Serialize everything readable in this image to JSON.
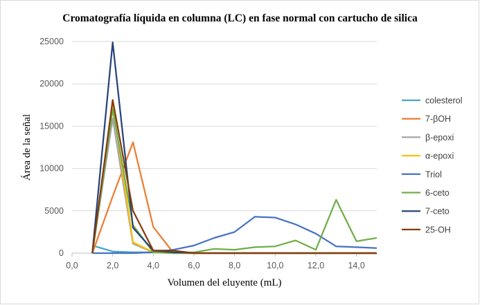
{
  "chart_data": {
    "type": "line",
    "title": "Cromatografía líquida en columna (LC) en fase normal con cartucho de silica",
    "xlabel": "Volumen del eluyente (mL)",
    "ylabel": "Área de la señal",
    "xlim": [
      0,
      15
    ],
    "ylim": [
      0,
      25000
    ],
    "x_ticks": [
      "0,0",
      "2,0",
      "4,0",
      "6,0",
      "8,0",
      "10,0",
      "12,0",
      "14,0"
    ],
    "y_ticks": [
      "0",
      "5000",
      "10000",
      "15000",
      "20000",
      "25000"
    ],
    "grid": "horizontal",
    "legend_position": "right",
    "x": [
      1,
      2,
      3,
      4,
      5,
      6,
      7,
      8,
      9,
      10,
      11,
      12,
      13,
      14,
      15
    ],
    "series": [
      {
        "name": "colesterol",
        "color": "#4aa3c9",
        "values": [
          900,
          200,
          100,
          100,
          0,
          0,
          0,
          0,
          0,
          0,
          0,
          0,
          0,
          0,
          0
        ]
      },
      {
        "name": "7-βOH",
        "color": "#ed7d31",
        "values": [
          0,
          6700,
          13100,
          3100,
          0,
          0,
          0,
          0,
          0,
          0,
          0,
          0,
          0,
          0,
          0
        ]
      },
      {
        "name": "β-epoxi",
        "color": "#a5a5a5",
        "values": [
          0,
          15900,
          1100,
          100,
          0,
          0,
          0,
          0,
          0,
          0,
          0,
          0,
          0,
          0,
          0
        ]
      },
      {
        "name": "α-epoxi",
        "color": "#ffc000",
        "values": [
          0,
          17600,
          1300,
          100,
          0,
          0,
          0,
          0,
          0,
          0,
          0,
          0,
          0,
          0,
          0
        ]
      },
      {
        "name": "Triol",
        "color": "#4472c4",
        "values": [
          0,
          0,
          0,
          100,
          400,
          900,
          1800,
          2500,
          4300,
          4200,
          3400,
          2300,
          800,
          700,
          600
        ]
      },
      {
        "name": "6-ceto",
        "color": "#70ad47",
        "values": [
          0,
          17000,
          3300,
          100,
          0,
          100,
          500,
          400,
          700,
          800,
          1500,
          400,
          6300,
          1400,
          1800
        ]
      },
      {
        "name": "7-ceto",
        "color": "#264478",
        "values": [
          0,
          24900,
          3000,
          300,
          100,
          0,
          0,
          0,
          0,
          0,
          0,
          0,
          0,
          0,
          0
        ]
      },
      {
        "name": "25-OH",
        "color": "#843c0c",
        "values": [
          0,
          18100,
          5000,
          300,
          300,
          0,
          0,
          0,
          0,
          0,
          0,
          0,
          0,
          0,
          0
        ]
      }
    ]
  }
}
